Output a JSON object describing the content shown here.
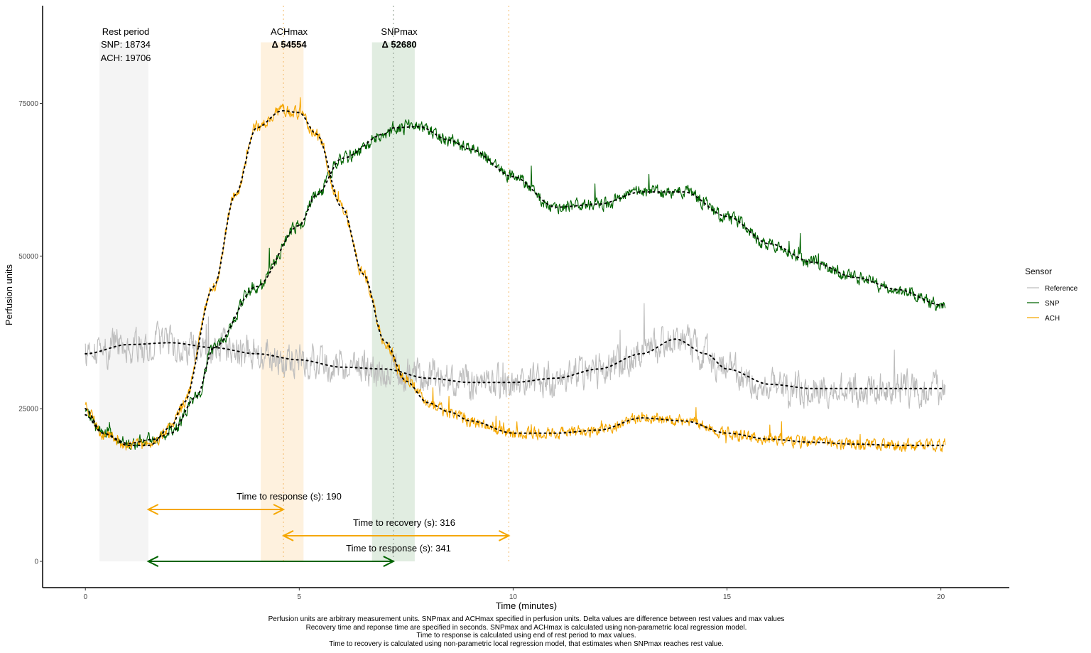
{
  "chart_data": {
    "type": "line",
    "xlabel": "Time (minutes)",
    "ylabel": "Perfusion units",
    "xlim": [
      -1,
      21.6
    ],
    "ylim": [
      -4300,
      91000
    ],
    "x_ticks": [
      0,
      5,
      10,
      15,
      20
    ],
    "y_ticks": [
      0,
      25000,
      50000,
      75000
    ],
    "grid": false,
    "legend": {
      "title": "Sensor",
      "position": "right",
      "entries": [
        {
          "label": "Reference",
          "color": "#bdbdbd"
        },
        {
          "label": "SNP",
          "color": "#006400"
        },
        {
          "label": "ACH",
          "color": "#f5a700"
        }
      ]
    },
    "series": [
      {
        "name": "Reference",
        "color": "#bdbdbd",
        "smooth_color": "#000000",
        "anchors": [
          [
            0,
            34000
          ],
          [
            1,
            35500
          ],
          [
            2,
            35800
          ],
          [
            3,
            35000
          ],
          [
            4,
            34000
          ],
          [
            5,
            33000
          ],
          [
            6,
            31800
          ],
          [
            7,
            31500
          ],
          [
            8,
            30000
          ],
          [
            9,
            29300
          ],
          [
            10,
            29300
          ],
          [
            11,
            30000
          ],
          [
            12,
            31500
          ],
          [
            13,
            34000
          ],
          [
            13.8,
            36400
          ],
          [
            14.5,
            34000
          ],
          [
            15,
            31500
          ],
          [
            16,
            29000
          ],
          [
            17,
            28300
          ],
          [
            18,
            28300
          ],
          [
            19,
            28300
          ],
          [
            20,
            28300
          ]
        ],
        "noise": 4200,
        "seed": 11
      },
      {
        "name": "SNP",
        "color": "#006400",
        "smooth_color": "#000000",
        "anchors": [
          [
            0,
            24000
          ],
          [
            0.4,
            21000
          ],
          [
            1,
            19300
          ],
          [
            1.6,
            20000
          ],
          [
            2,
            21000
          ],
          [
            2.6,
            27000
          ],
          [
            3,
            35000
          ],
          [
            4,
            45000
          ],
          [
            5,
            55000
          ],
          [
            5.4,
            60000
          ],
          [
            6,
            66000
          ],
          [
            7,
            70000
          ],
          [
            7.2,
            71000
          ],
          [
            7.8,
            71200
          ],
          [
            8.5,
            69000
          ],
          [
            9,
            67500
          ],
          [
            10,
            63000
          ],
          [
            11,
            58000
          ],
          [
            12,
            58500
          ],
          [
            13,
            60500
          ],
          [
            14,
            60500
          ],
          [
            15,
            56500
          ],
          [
            16,
            52000
          ],
          [
            17,
            49000
          ],
          [
            18,
            46500
          ],
          [
            19,
            44500
          ],
          [
            20,
            42000
          ]
        ],
        "noise": 1600,
        "seed": 23
      },
      {
        "name": "ACH",
        "color": "#f5a700",
        "smooth_color": "#000000",
        "anchors": [
          [
            0,
            25000
          ],
          [
            0.4,
            21000
          ],
          [
            1,
            19000
          ],
          [
            1.5,
            19000
          ],
          [
            2,
            22000
          ],
          [
            2.3,
            26000
          ],
          [
            3,
            45000
          ],
          [
            3.5,
            60000
          ],
          [
            4,
            71000
          ],
          [
            4.6,
            73800
          ],
          [
            5,
            73500
          ],
          [
            5.4,
            70000
          ],
          [
            6,
            58000
          ],
          [
            6.5,
            47000
          ],
          [
            7,
            36000
          ],
          [
            7.5,
            29500
          ],
          [
            8,
            26000
          ],
          [
            8.5,
            24500
          ],
          [
            9,
            23000
          ],
          [
            10,
            21000
          ],
          [
            11,
            21000
          ],
          [
            12,
            21500
          ],
          [
            13,
            23500
          ],
          [
            14,
            23000
          ],
          [
            15,
            21000
          ],
          [
            16,
            20000
          ],
          [
            17,
            19500
          ],
          [
            18,
            19200
          ],
          [
            19,
            19000
          ],
          [
            20,
            19000
          ]
        ],
        "noise": 1500,
        "seed": 37
      }
    ],
    "shaded_regions": [
      {
        "name": "rest",
        "x0": 0.33,
        "x1": 1.47,
        "color": "#ebebeb"
      },
      {
        "name": "achmax",
        "x0": 4.1,
        "x1": 5.1,
        "color": "#fde6c3"
      },
      {
        "name": "snpmax",
        "x0": 6.7,
        "x1": 7.7,
        "color": "#c8dfc9"
      }
    ],
    "vlines": [
      {
        "x": 4.63,
        "color": "#f5c27a"
      },
      {
        "x": 7.2,
        "color": "#9aa89a"
      },
      {
        "x": 9.9,
        "color": "#f5c27a"
      }
    ],
    "annotations": {
      "rest_title": "Rest period",
      "rest_snp": "SNP: 18734",
      "rest_ach": "ACH: 19706",
      "achmax_title": "ACHmax",
      "achmax_delta": "Δ 54554",
      "snpmax_title": "SNPmax",
      "snpmax_delta": "Δ 52680",
      "ach_response": "Time to response (s): 190",
      "ach_recovery": "Time to recovery (s): 316",
      "snp_response": "Time to response (s): 341"
    },
    "arrows": [
      {
        "name": "ach-response",
        "x0": 1.47,
        "x1": 4.63,
        "y": 8500,
        "color": "#f5a700"
      },
      {
        "name": "ach-recovery",
        "x0": 4.63,
        "x1": 9.9,
        "y": 4200,
        "color": "#f5a700"
      },
      {
        "name": "snp-response",
        "x0": 1.47,
        "x1": 7.2,
        "y": 0,
        "color": "#006400"
      }
    ]
  },
  "caption": [
    "Perfusion units are arbitrary measurement units. SNPmax and ACHmax specified in perfusion units. Delta values are difference between rest values and max values",
    "Recovery time and reponse time are specified in seconds. SNPmax and ACHmax is calculated using non-parametric local regression model.",
    "Time to response is calculated using end of rest period to max values.",
    "Time to recovery is calculated using non-parametric local regression model, that estimates when SNPmax reaches rest value."
  ]
}
